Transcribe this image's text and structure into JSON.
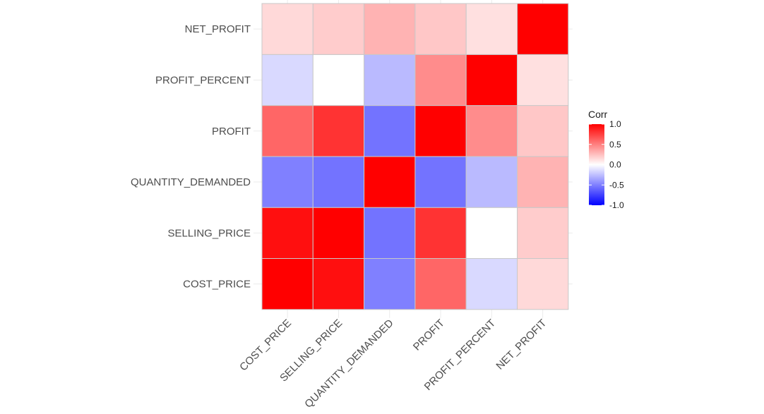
{
  "chart_data": {
    "type": "heatmap",
    "variables": [
      "COST_PRICE",
      "SELLING_PRICE",
      "QUANTITY_DEMANDED",
      "PROFIT",
      "PROFIT_PERCENT",
      "NET_PROFIT"
    ],
    "matrix": [
      [
        1.0,
        0.94,
        -0.5,
        0.6,
        -0.15,
        0.15
      ],
      [
        0.94,
        1.0,
        -0.55,
        0.8,
        0.0,
        0.2
      ],
      [
        -0.5,
        -0.55,
        1.0,
        -0.55,
        -0.27,
        0.3
      ],
      [
        0.6,
        0.8,
        -0.55,
        1.0,
        0.45,
        0.22
      ],
      [
        -0.15,
        0.0,
        -0.27,
        0.45,
        1.0,
        0.12
      ],
      [
        0.15,
        0.2,
        0.3,
        0.22,
        0.12,
        1.0
      ]
    ],
    "legend": {
      "title": "Corr",
      "ticks": [
        1.0,
        0.5,
        0.0,
        -0.5,
        -1.0
      ],
      "tick_labels": [
        "1.0",
        "0.5",
        "0.0",
        "-0.5",
        "-1.0"
      ],
      "placement": "right"
    },
    "color_scale": {
      "low": "#0000ff",
      "mid": "#ffffff",
      "high": "#ff0000"
    },
    "range": [
      -1,
      1
    ],
    "grid": true
  }
}
